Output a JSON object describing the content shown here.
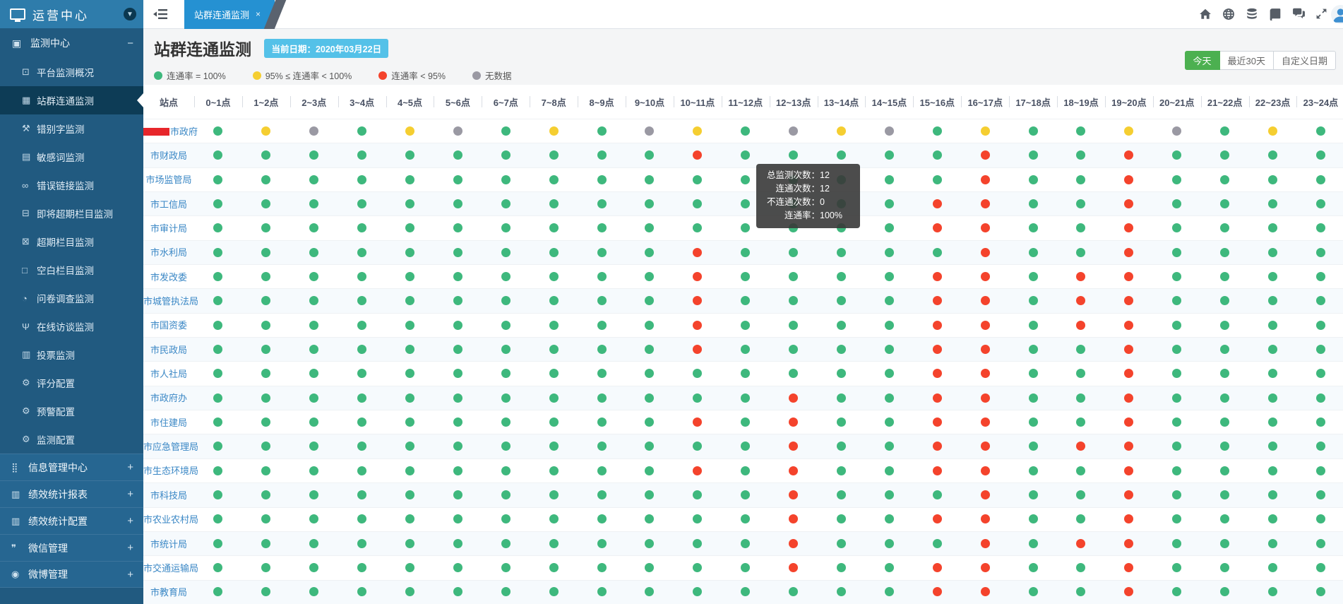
{
  "colors": {
    "green": "#3eb87d",
    "yellow": "#f5ce31",
    "red": "#f4432c",
    "gray": "#9a99a3"
  },
  "sidebar": {
    "logo_title": "运营中心",
    "group": {
      "label": "监测中心",
      "icon": "monitor-center-icon",
      "glyph": "▣",
      "sign": "−"
    },
    "items": [
      {
        "label": "平台监测概况",
        "icon": "platform-overview-icon",
        "glyph": "⊡",
        "active": false
      },
      {
        "label": "站群连通监测",
        "icon": "site-connectivity-icon",
        "glyph": "▦",
        "active": true
      },
      {
        "label": "错别字监测",
        "icon": "typo-monitor-icon",
        "glyph": "⚒",
        "active": false
      },
      {
        "label": "敏感词监测",
        "icon": "sensitive-word-icon",
        "glyph": "▤",
        "active": false
      },
      {
        "label": "错误链接监测",
        "icon": "broken-link-icon",
        "glyph": "∞",
        "active": false
      },
      {
        "label": "即将超期栏目监测",
        "icon": "soon-overdue-column-icon",
        "glyph": "⊟",
        "active": false
      },
      {
        "label": "超期栏目监测",
        "icon": "overdue-column-icon",
        "glyph": "⊠",
        "active": false
      },
      {
        "label": "空白栏目监测",
        "icon": "blank-column-icon",
        "glyph": "□",
        "active": false
      },
      {
        "label": "问卷调查监测",
        "icon": "survey-monitor-icon",
        "glyph": "◔",
        "active": false
      },
      {
        "label": "在线访谈监测",
        "icon": "interview-monitor-icon",
        "glyph": "Ψ",
        "active": false
      },
      {
        "label": "投票监测",
        "icon": "vote-monitor-icon",
        "glyph": "▥",
        "active": false
      },
      {
        "label": "评分配置",
        "icon": "score-config-icon",
        "glyph": "⚙",
        "active": false
      },
      {
        "label": "预警配置",
        "icon": "alert-config-icon",
        "glyph": "⚙",
        "active": false
      },
      {
        "label": "监测配置",
        "icon": "monitor-config-icon",
        "glyph": "⚙",
        "active": false
      }
    ],
    "bottom_groups": [
      {
        "label": "信息管理中心",
        "icon": "info-management-icon",
        "glyph": "⣿",
        "sign": "+"
      },
      {
        "label": "绩效统计报表",
        "icon": "performance-report-icon",
        "glyph": "▥",
        "sign": "+"
      },
      {
        "label": "绩效统计配置",
        "icon": "performance-config-icon",
        "glyph": "▥",
        "sign": "+"
      },
      {
        "label": "微信管理",
        "icon": "wechat-management-icon",
        "glyph": "❞",
        "sign": "+"
      },
      {
        "label": "微博管理",
        "icon": "weibo-management-icon",
        "glyph": "◉",
        "sign": "+"
      }
    ]
  },
  "topbar": {
    "tab": {
      "label": "站群连通监测",
      "close": "×"
    },
    "icons": [
      "home",
      "globe",
      "database",
      "book",
      "chat",
      "expand"
    ]
  },
  "page": {
    "title": "站群连通监测",
    "date_badge": "当前日期：2020年03月22日",
    "filters": [
      {
        "label": "今天",
        "active": true
      },
      {
        "label": "最近30天",
        "active": false
      },
      {
        "label": "自定义日期",
        "active": false
      }
    ]
  },
  "legend": [
    {
      "code": "g",
      "label": "连通率 = 100%"
    },
    {
      "code": "y",
      "label": "95% ≤ 连通率 < 100%"
    },
    {
      "code": "r",
      "label": "连通率 < 95%"
    },
    {
      "code": "n",
      "label": "无数据"
    }
  ],
  "table": {
    "site_header": "站点",
    "hours": [
      "0~1点",
      "1~2点",
      "2~3点",
      "3~4点",
      "4~5点",
      "5~6点",
      "6~7点",
      "7~8点",
      "8~9点",
      "9~10点",
      "10~11点",
      "11~12点",
      "12~13点",
      "13~14点",
      "14~15点",
      "15~16点",
      "16~17点",
      "17~18点",
      "18~19点",
      "19~20点",
      "20~21点",
      "21~22点",
      "22~23点",
      "23~24点"
    ],
    "rows": [
      {
        "name": "市政府",
        "redacted": true,
        "cells": "gyngyngygnygnyngyggyngyg"
      },
      {
        "name": "市财政局",
        "redacted": false,
        "cells": "ggggggggggrgggggrggrgggg"
      },
      {
        "name": "市场监管局",
        "redacted": false,
        "cells": "ggggggggggggggggrggrgggg"
      },
      {
        "name": "市工信局",
        "redacted": false,
        "cells": "gggggggggggggggrrggrgggg"
      },
      {
        "name": "市审计局",
        "redacted": false,
        "cells": "gggggggggggggggrrggrgggg"
      },
      {
        "name": "市水利局",
        "redacted": false,
        "cells": "ggggggggggrgggggrggrgggg"
      },
      {
        "name": "市发改委",
        "redacted": false,
        "cells": "ggggggggggrggggrrgrrgggg"
      },
      {
        "name": "市城管执法局",
        "redacted": false,
        "cells": "ggggggggggrggggrrgrrgggg"
      },
      {
        "name": "市国资委",
        "redacted": false,
        "cells": "ggggggggggrggggrrgrrgggg"
      },
      {
        "name": "市民政局",
        "redacted": false,
        "cells": "ggggggggggrggggrrggrgggg"
      },
      {
        "name": "市人社局",
        "redacted": false,
        "cells": "gggggggggggggggrrggrgggg"
      },
      {
        "name": "市政府办",
        "redacted": false,
        "cells": "ggggggggggggrggrrggrgggg"
      },
      {
        "name": "市住建局",
        "redacted": false,
        "cells": "ggggggggggrgrggrrggrgggg"
      },
      {
        "name": "市应急管理局",
        "redacted": false,
        "cells": "ggggggggggggrggrrgrrgggg"
      },
      {
        "name": "市生态环境局",
        "redacted": false,
        "cells": "ggggggggggrgrggrrggrgggg"
      },
      {
        "name": "市科技局",
        "redacted": false,
        "cells": "ggggggggggggrgggrggrgggg"
      },
      {
        "name": "市农业农村局",
        "redacted": false,
        "cells": "ggggggggggggrggrrggrgggg"
      },
      {
        "name": "市统计局",
        "redacted": false,
        "cells": "ggggggggggggrgggrgrrgggg"
      },
      {
        "name": "市交通运输局",
        "redacted": false,
        "cells": "ggggggggggggrggrrggrgggg"
      },
      {
        "name": "市教育局",
        "redacted": false,
        "cells": "gggggggggggggggrrggrgggg"
      }
    ]
  },
  "tooltip": {
    "lines": [
      {
        "label": "总监测次数：",
        "value": "12"
      },
      {
        "label": "连通次数：",
        "value": "12"
      },
      {
        "label": "不连通次数：",
        "value": "0"
      },
      {
        "label": "连通率：",
        "value": "100%"
      }
    ]
  }
}
